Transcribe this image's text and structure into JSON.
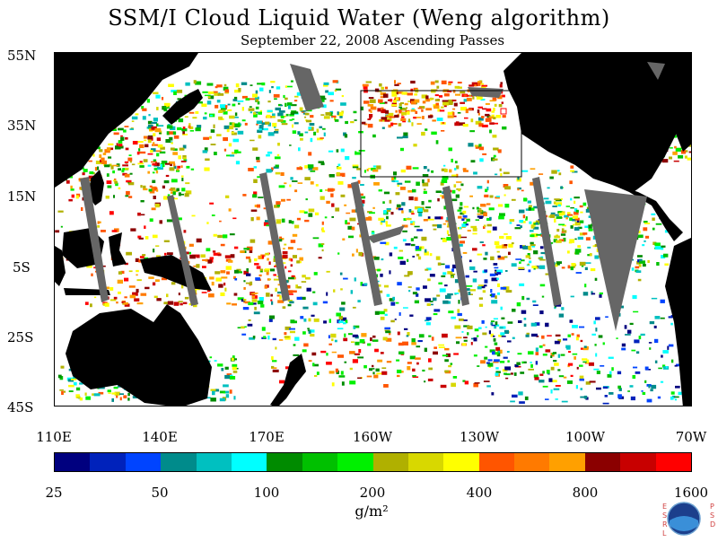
{
  "title": "SSM/I Cloud Liquid Water (Weng algorithm)",
  "subtitle": "September 22, 2008  Ascending Passes",
  "latitude_labels": [
    "55N",
    "35N",
    "15N",
    "5S",
    "25S",
    "45S"
  ],
  "longitude_labels": [
    "110E",
    "140E",
    "170E",
    "160W",
    "130W",
    "100W",
    "70W"
  ],
  "colorbar": {
    "labels": [
      "25",
      "50",
      "100",
      "200",
      "400",
      "800",
      "1600"
    ],
    "units": "g/m²",
    "colors": [
      "#00007f",
      "#0022bb",
      "#0044ff",
      "#008b8b",
      "#00c0c0",
      "#00ffff",
      "#008b00",
      "#00c000",
      "#00f000",
      "#b0b000",
      "#d8d800",
      "#ffff00",
      "#ff5500",
      "#ff7a00",
      "#ffa000",
      "#8b0000",
      "#c80000",
      "#ff0000"
    ]
  },
  "map": {
    "land_color": "#000000",
    "no_data_color": "#666666",
    "box_color": "#000000"
  },
  "logo": {
    "name": "NOAA",
    "left_letters": "ESRL",
    "right_letters": "PSD"
  }
}
